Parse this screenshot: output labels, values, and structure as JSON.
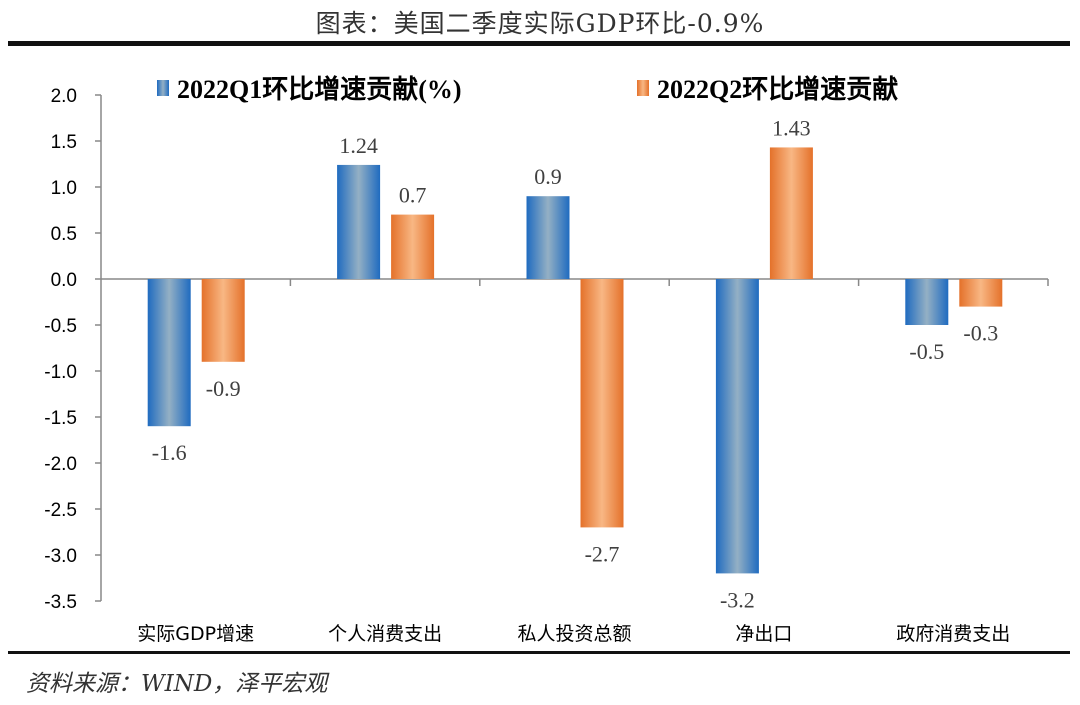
{
  "title": "图表：美国二季度实际GDP环比-0.9%",
  "source": "资料来源：WIND，泽平宏观",
  "chart_data": {
    "type": "bar",
    "title": "图表：美国二季度实际GDP环比-0.9%",
    "categories": [
      "实际GDP增速",
      "个人消费支出",
      "私人投资总额",
      "净出口",
      "政府消费支出"
    ],
    "series": [
      {
        "name": "2022Q1环比增速贡献(%)",
        "values": [
          -1.6,
          1.24,
          0.9,
          -3.2,
          -0.5
        ],
        "labels": [
          "-1.6",
          "1.24",
          "0.9",
          "-3.2",
          "-0.5"
        ],
        "color": "#1f6bc0",
        "color_mid": "#94b0c4"
      },
      {
        "name": "2022Q2环比增速贡献",
        "values": [
          -0.9,
          0.7,
          -2.7,
          1.43,
          -0.3
        ],
        "labels": [
          "-0.9",
          "0.7",
          "-2.7",
          "1.43",
          "-0.3"
        ],
        "color": "#e4712a",
        "color_mid": "#f8b784"
      }
    ],
    "ylim": [
      -3.5,
      2.0
    ],
    "yticks": [
      "2.0",
      "1.5",
      "1.0",
      "0.5",
      "0.0",
      "-0.5",
      "-1.0",
      "-1.5",
      "-2.0",
      "-2.5",
      "-3.0",
      "-3.5"
    ],
    "ytick_values": [
      2.0,
      1.5,
      1.0,
      0.5,
      0.0,
      -0.5,
      -1.0,
      -1.5,
      -2.0,
      -2.5,
      -3.0,
      -3.5
    ],
    "legend": "top",
    "grid": false,
    "xlabel": "",
    "ylabel": ""
  }
}
